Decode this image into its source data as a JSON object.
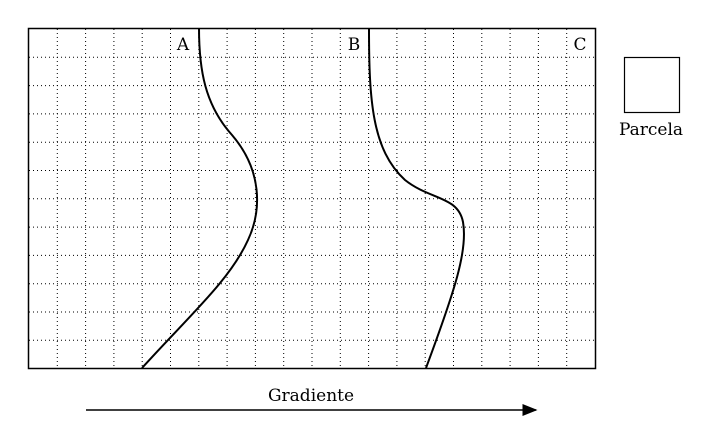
{
  "diagram": {
    "zone_labels": [
      "A",
      "B",
      "C"
    ],
    "legend_label": "Parcela",
    "gradient_label": "Gradiente"
  }
}
